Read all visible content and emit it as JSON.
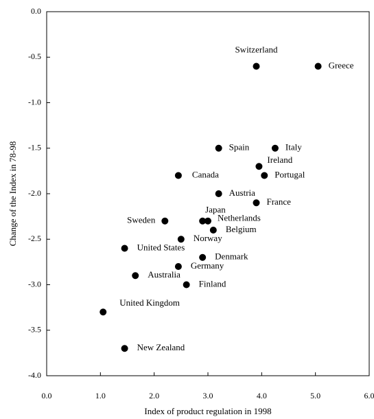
{
  "chart_data": {
    "type": "scatter",
    "x_label": "Index of product regulation in 1998",
    "y_label": "Change of the Index in 78-98",
    "labels": [
      "Switzerland",
      "Greece",
      "Spain",
      "Italy",
      "Ireland",
      "Portugal",
      "Canada",
      "Austria",
      "France",
      "Japan",
      "Netherlands",
      "Sweden",
      "Belgium",
      "Norway",
      "United States",
      "Denmark",
      "Germany",
      "Australia",
      "Finland",
      "United Kingdom",
      "New Zealand"
    ],
    "x": [
      3.9,
      5.05,
      3.2,
      4.25,
      3.95,
      4.05,
      2.45,
      3.2,
      3.9,
      2.9,
      3.0,
      2.2,
      3.1,
      2.5,
      1.45,
      2.9,
      2.45,
      1.65,
      2.6,
      1.05,
      1.45
    ],
    "values": [
      -0.6,
      -0.6,
      -1.5,
      -1.5,
      -1.7,
      -1.8,
      -1.8,
      -2.0,
      -2.1,
      -2.3,
      -2.3,
      -2.3,
      -2.4,
      -2.5,
      -2.6,
      -2.7,
      -2.8,
      -2.9,
      -3.0,
      -3.3,
      -3.7
    ],
    "color": "#000000",
    "xlim": [
      0,
      6
    ],
    "ylim": [
      -4,
      0
    ],
    "xticks": [
      {
        "value": 0,
        "label": "0.0"
      },
      {
        "value": 1,
        "label": "1.0"
      },
      {
        "value": 2,
        "label": "2.0"
      },
      {
        "value": 3,
        "label": "3.0"
      },
      {
        "value": 4,
        "label": "4.0"
      },
      {
        "value": 5,
        "label": "5.0"
      },
      {
        "value": 6,
        "label": "6.0"
      }
    ],
    "yticks": [
      {
        "value": 0,
        "label": "0.0"
      },
      -0.5,
      {
        "value": -1,
        "label": "-1.0"
      },
      -1.5,
      {
        "value": -2,
        "label": "-2.0"
      },
      -2.5,
      {
        "value": -3,
        "label": "-3.0"
      },
      -3.5,
      {
        "value": -4,
        "label": "-4.0"
      }
    ]
  }
}
